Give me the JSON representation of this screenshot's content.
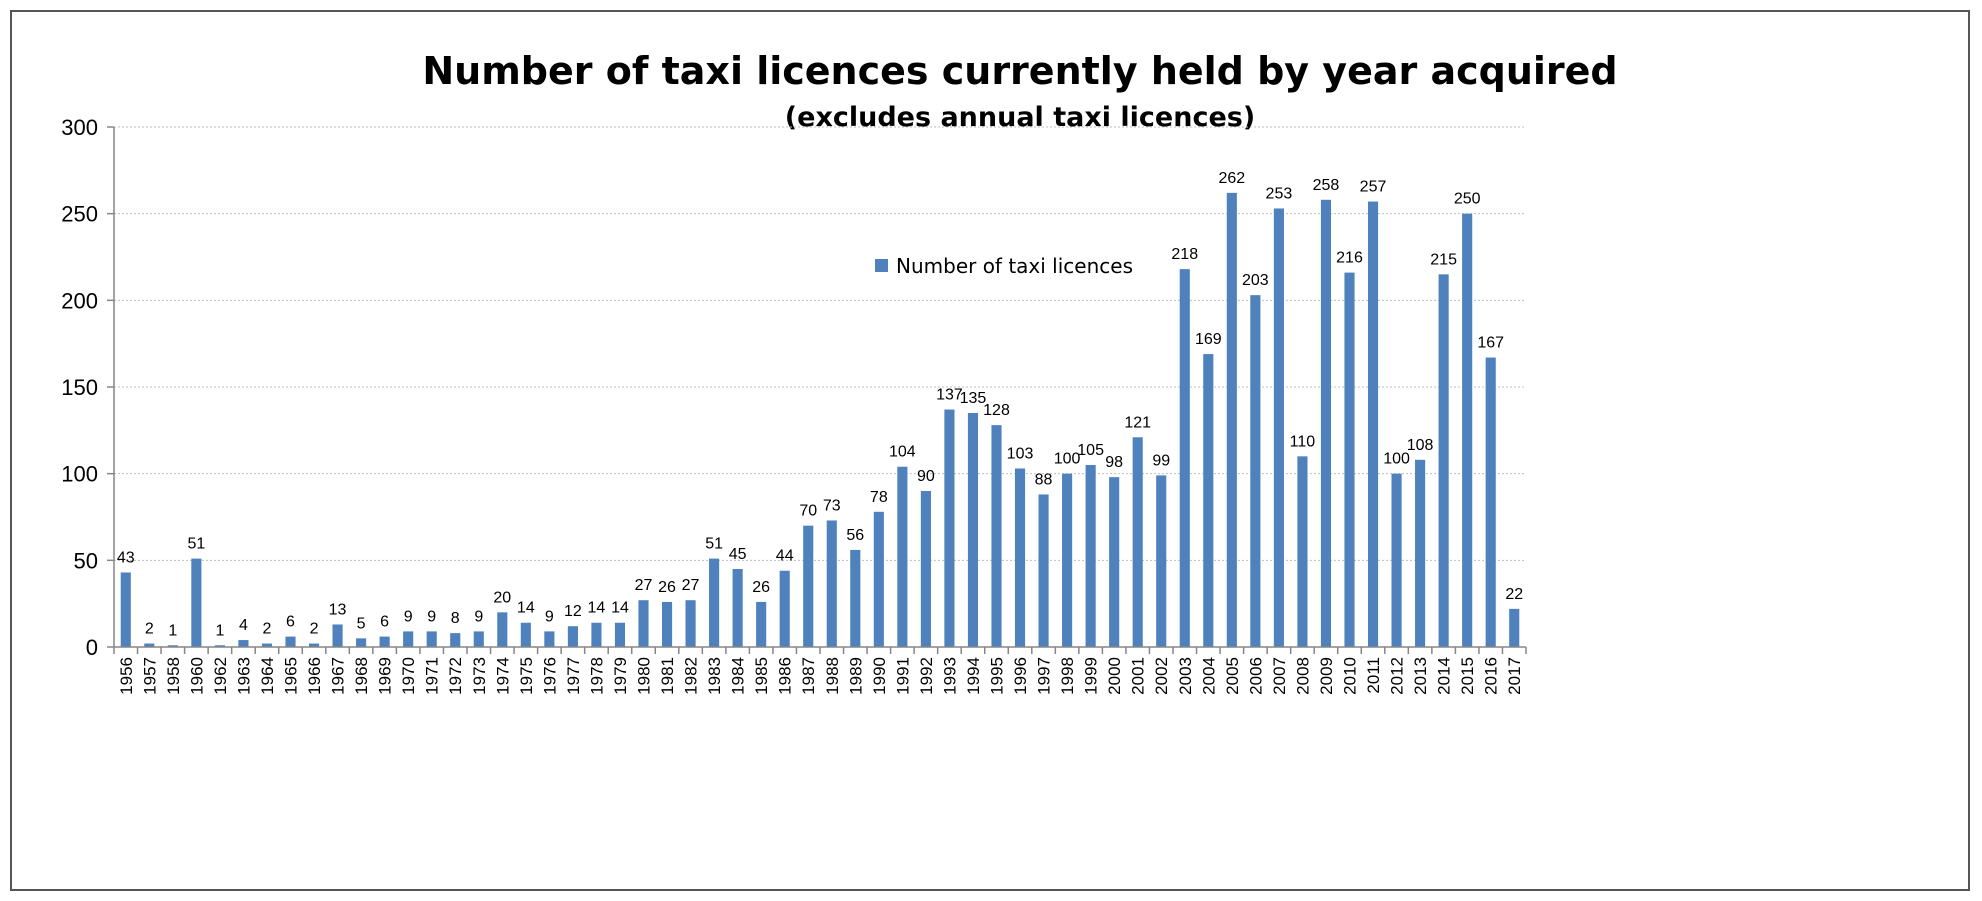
{
  "chart_data": {
    "type": "bar",
    "title": "Number of taxi licences currently held by year acquired",
    "subtitle": "(excludes annual taxi licences)",
    "xlabel": "",
    "ylabel": "",
    "ylim": [
      0,
      300
    ],
    "yticks": [
      "0",
      "50",
      "100",
      "150",
      "200",
      "250",
      "300"
    ],
    "grid": true,
    "legend_position": "top-center",
    "bar_color": "#4F81BD",
    "categories": [
      "1956",
      "1957",
      "1958",
      "1960",
      "1962",
      "1963",
      "1964",
      "1965",
      "1966",
      "1967",
      "1968",
      "1969",
      "1970",
      "1971",
      "1972",
      "1973",
      "1974",
      "1975",
      "1976",
      "1977",
      "1978",
      "1979",
      "1980",
      "1981",
      "1982",
      "1983",
      "1984",
      "1985",
      "1986",
      "1987",
      "1988",
      "1989",
      "1990",
      "1991",
      "1992",
      "1993",
      "1994",
      "1995",
      "1996",
      "1997",
      "1998",
      "1999",
      "2000",
      "2001",
      "2002",
      "2003",
      "2004",
      "2005",
      "2006",
      "2007",
      "2008",
      "2009",
      "2010",
      "2011",
      "2012",
      "2013",
      "2014",
      "2015",
      "2016",
      "2017"
    ],
    "series": [
      {
        "name": "Number of taxi licences",
        "values": [
          43,
          2,
          1,
          51,
          1,
          4,
          2,
          6,
          2,
          13,
          5,
          6,
          9,
          9,
          8,
          9,
          20,
          14,
          9,
          12,
          14,
          14,
          27,
          26,
          27,
          51,
          45,
          26,
          44,
          70,
          73,
          56,
          78,
          104,
          90,
          137,
          135,
          128,
          103,
          88,
          100,
          105,
          98,
          121,
          99,
          218,
          169,
          262,
          203,
          253,
          110,
          258,
          216,
          257,
          100,
          108,
          215,
          250,
          167,
          22
        ]
      }
    ]
  }
}
